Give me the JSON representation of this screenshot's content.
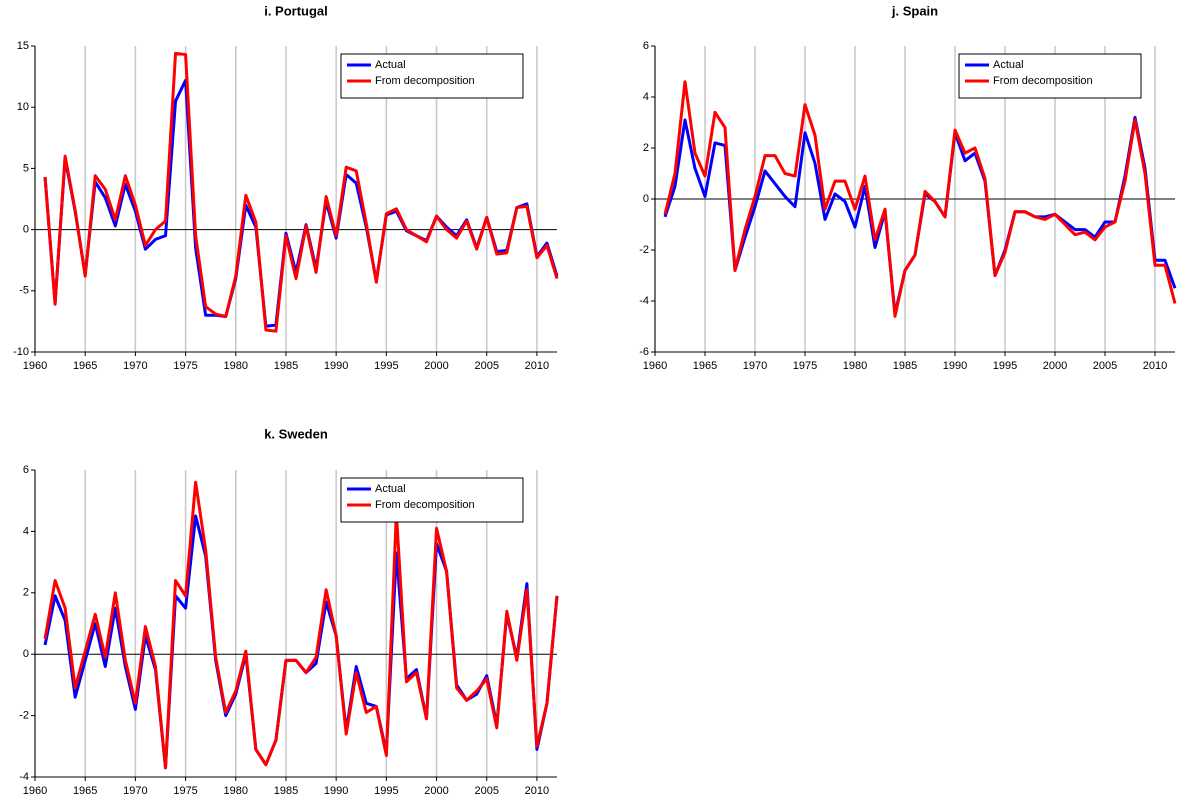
{
  "chart_data": [
    {
      "type": "line",
      "title": "i. Portugal",
      "grid": true,
      "legend": "upper right",
      "x": [
        1961,
        1962,
        1963,
        1964,
        1965,
        1966,
        1967,
        1968,
        1969,
        1970,
        1971,
        1972,
        1973,
        1974,
        1975,
        1976,
        1977,
        1978,
        1979,
        1980,
        1981,
        1982,
        1983,
        1984,
        1985,
        1986,
        1987,
        1988,
        1989,
        1990,
        1991,
        1992,
        1993,
        1994,
        1995,
        1996,
        1997,
        1998,
        1999,
        2000,
        2001,
        2002,
        2003,
        2004,
        2005,
        2006,
        2007,
        2008,
        2009,
        2010,
        2011,
        2012
      ],
      "xlim": [
        1960,
        2012
      ],
      "xticks": [
        1960,
        1965,
        1970,
        1975,
        1980,
        1985,
        1990,
        1995,
        2000,
        2005,
        2010
      ],
      "ylim": [
        -10,
        15
      ],
      "yticks": [
        -10,
        -5,
        0,
        5,
        10,
        15
      ],
      "series": [
        {
          "name": "Actual",
          "color": "#0000ff",
          "values": [
            4.3,
            -6,
            5.8,
            1.5,
            -3.7,
            3.9,
            2.6,
            0.3,
            3.7,
            1.5,
            -1.6,
            -0.8,
            -0.5,
            10.5,
            12.2,
            -1.5,
            -7,
            -7,
            -7.1,
            -4,
            2,
            0.2,
            -7.9,
            -7.8,
            -0.3,
            -3.5,
            0.4,
            -3.2,
            2.3,
            -0.7,
            4.5,
            3.8,
            0.2,
            -4.2,
            1.2,
            1.5,
            -0.1,
            -0.5,
            -0.9,
            1.1,
            0.2,
            -0.5,
            0.8,
            -1.5,
            1,
            -1.8,
            -1.7,
            1.8,
            2.1,
            -2.2,
            -1.1,
            -3.8
          ]
        },
        {
          "name": "From decomposition",
          "color": "#ff0000",
          "values": [
            4.3,
            -6.1,
            6,
            1.6,
            -3.8,
            4.4,
            3.3,
            0.8,
            4.4,
            2,
            -1.3,
            0,
            0.7,
            14.4,
            14.3,
            -0.5,
            -6.3,
            -6.9,
            -7.1,
            -3.8,
            2.8,
            0.6,
            -8.2,
            -8.3,
            -0.5,
            -4,
            0.3,
            -3.5,
            2.7,
            -0.5,
            5.1,
            4.8,
            0.5,
            -4.3,
            1.3,
            1.7,
            0,
            -0.5,
            -1,
            1.1,
            0,
            -0.7,
            0.7,
            -1.6,
            1,
            -2,
            -1.9,
            1.8,
            1.9,
            -2.3,
            -1.3,
            -4
          ]
        }
      ]
    },
    {
      "type": "line",
      "title": "j. Spain",
      "grid": true,
      "legend": "upper right",
      "x": [
        1961,
        1962,
        1963,
        1964,
        1965,
        1966,
        1967,
        1968,
        1969,
        1970,
        1971,
        1972,
        1973,
        1974,
        1975,
        1976,
        1977,
        1978,
        1979,
        1980,
        1981,
        1982,
        1983,
        1984,
        1985,
        1986,
        1987,
        1988,
        1989,
        1990,
        1991,
        1992,
        1993,
        1994,
        1995,
        1996,
        1997,
        1998,
        1999,
        2000,
        2001,
        2002,
        2003,
        2004,
        2005,
        2006,
        2007,
        2008,
        2009,
        2010,
        2011,
        2012
      ],
      "xlim": [
        1960,
        2012
      ],
      "xticks": [
        1960,
        1965,
        1970,
        1975,
        1980,
        1985,
        1990,
        1995,
        2000,
        2005,
        2010
      ],
      "ylim": [
        -6,
        6
      ],
      "yticks": [
        -6,
        -4,
        -2,
        0,
        2,
        4,
        6
      ],
      "series": [
        {
          "name": "Actual",
          "color": "#0000ff",
          "values": [
            -0.7,
            0.5,
            3.1,
            1.2,
            0.1,
            2.2,
            2.1,
            -2.8,
            -1.5,
            -0.3,
            1.1,
            0.6,
            0.1,
            -0.3,
            2.6,
            1.4,
            -0.8,
            0.2,
            -0.1,
            -1.1,
            0.5,
            -1.9,
            -0.5,
            -4.5,
            -2.8,
            -2.2,
            0.2,
            -0.1,
            -0.7,
            2.6,
            1.5,
            1.8,
            0.7,
            -3,
            -2,
            -0.5,
            -0.5,
            -0.7,
            -0.7,
            -0.6,
            -0.9,
            -1.2,
            -1.2,
            -1.5,
            -0.9,
            -0.9,
            0.9,
            3.2,
            1.2,
            -2.4,
            -2.4,
            -3.5
          ]
        },
        {
          "name": "From decomposition",
          "color": "#ff0000",
          "values": [
            -0.6,
            1,
            4.6,
            1.8,
            0.9,
            3.4,
            2.8,
            -2.8,
            -1.2,
            0.1,
            1.7,
            1.7,
            1,
            0.9,
            3.7,
            2.5,
            -0.4,
            0.7,
            0.7,
            -0.4,
            0.9,
            -1.6,
            -0.4,
            -4.6,
            -2.8,
            -2.2,
            0.3,
            -0.1,
            -0.7,
            2.7,
            1.8,
            2,
            0.8,
            -3,
            -2.1,
            -0.5,
            -0.5,
            -0.7,
            -0.8,
            -0.6,
            -1,
            -1.4,
            -1.3,
            -1.6,
            -1.1,
            -0.9,
            0.7,
            3.1,
            1,
            -2.6,
            -2.6,
            -4.1
          ]
        }
      ]
    },
    {
      "type": "line",
      "title": "k. Sweden",
      "grid": true,
      "legend": "upper right",
      "x": [
        1961,
        1962,
        1963,
        1964,
        1965,
        1966,
        1967,
        1968,
        1969,
        1970,
        1971,
        1972,
        1973,
        1974,
        1975,
        1976,
        1977,
        1978,
        1979,
        1980,
        1981,
        1982,
        1983,
        1984,
        1985,
        1986,
        1987,
        1988,
        1989,
        1990,
        1991,
        1992,
        1993,
        1994,
        1995,
        1996,
        1997,
        1998,
        1999,
        2000,
        2001,
        2002,
        2003,
        2004,
        2005,
        2006,
        2007,
        2008,
        2009,
        2010,
        2011,
        2012
      ],
      "xlim": [
        1960,
        2012
      ],
      "xticks": [
        1960,
        1965,
        1970,
        1975,
        1980,
        1985,
        1990,
        1995,
        2000,
        2005,
        2010
      ],
      "ylim": [
        -4,
        6
      ],
      "yticks": [
        -4,
        -2,
        0,
        2,
        4,
        6
      ],
      "series": [
        {
          "name": "Actual",
          "color": "#0000ff",
          "values": [
            0.3,
            1.9,
            1.1,
            -1.4,
            -0.2,
            1,
            -0.4,
            1.5,
            -0.4,
            -1.8,
            0.6,
            -0.5,
            -3.7,
            1.9,
            1.5,
            4.5,
            3.2,
            -0.2,
            -2,
            -1.3,
            0,
            -3.1,
            -3.6,
            -2.8,
            -0.2,
            -0.2,
            -0.6,
            -0.3,
            1.7,
            0.6,
            -2.5,
            -0.4,
            -1.6,
            -1.7,
            -3.2,
            3.3,
            -0.8,
            -0.5,
            -2.1,
            3.6,
            2.7,
            -1,
            -1.5,
            -1.3,
            -0.7,
            -2.3,
            1.3,
            -0.1,
            2.3,
            -3.1,
            -1.6,
            1.9
          ]
        },
        {
          "name": "From decomposition",
          "color": "#ff0000",
          "values": [
            0.5,
            2.4,
            1.5,
            -1.1,
            0.1,
            1.3,
            -0.1,
            2,
            -0.2,
            -1.6,
            0.9,
            -0.4,
            -3.7,
            2.4,
            1.9,
            5.6,
            3.4,
            -0.1,
            -1.9,
            -1.2,
            0.1,
            -3.1,
            -3.6,
            -2.8,
            -0.2,
            -0.2,
            -0.6,
            -0.1,
            2.1,
            0.6,
            -2.6,
            -0.6,
            -1.9,
            -1.7,
            -3.3,
            4.6,
            -0.9,
            -0.6,
            -2.1,
            4.1,
            2.7,
            -1.1,
            -1.5,
            -1.2,
            -0.8,
            -2.4,
            1.4,
            -0.2,
            2.1,
            -3,
            -1.6,
            1.9
          ]
        }
      ]
    }
  ]
}
